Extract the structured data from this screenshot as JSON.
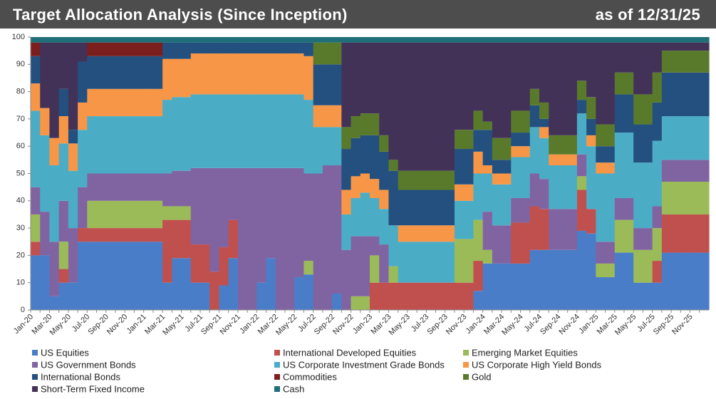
{
  "chart_data": {
    "type": "bar",
    "stacked": true,
    "title": "Target Allocation Analysis (Since Inception)",
    "subtitle": "as of 12/31/25",
    "categories": [
      "Jan-20",
      null,
      "Mar-20",
      null,
      "May-20",
      null,
      "Jul-20",
      null,
      "Sep-20",
      null,
      "Nov-20",
      null,
      "Jan-21",
      null,
      "Mar-21",
      null,
      "May-21",
      null,
      "Jul-21",
      null,
      "Sep-21",
      null,
      "Nov-21",
      null,
      "Jan-22",
      null,
      "Mar-22",
      null,
      "May-22",
      null,
      "Jul-22",
      null,
      "Sep-22",
      null,
      "Nov-22",
      null,
      "Jan-23",
      null,
      "Mar-23",
      null,
      "May-23",
      null,
      "Jul-23",
      null,
      "Sep-23",
      null,
      "Nov-23",
      null,
      "Jan-24",
      null,
      "Mar-24",
      null,
      "May-24",
      null,
      "Jul-24",
      null,
      "Sep-24",
      null,
      "Nov-24",
      null,
      "Jan-25",
      null,
      "Mar-25",
      null,
      "May-25",
      null,
      "Jul-25",
      null,
      "Sep-25",
      null,
      "Nov-25",
      null
    ],
    "ylim": [
      0,
      100
    ],
    "yticks": [
      0,
      10,
      20,
      30,
      40,
      50,
      60,
      70,
      80,
      90,
      100
    ],
    "grid": false,
    "legend": "bottom",
    "series": [
      {
        "name": "US Equities",
        "color": "#4a7dc8",
        "values": [
          20,
          20,
          5,
          10,
          10,
          25,
          25,
          25,
          25,
          25,
          25,
          25,
          25,
          25,
          10,
          19,
          19,
          10,
          10,
          0,
          9,
          19,
          0,
          0,
          10,
          19,
          0,
          0,
          12,
          13,
          0,
          0,
          6,
          0,
          0,
          0,
          0,
          0,
          0,
          0,
          0,
          0,
          0,
          0,
          0,
          0,
          0,
          7,
          17,
          17,
          17,
          17,
          17,
          22,
          22,
          22,
          22,
          22,
          29,
          28,
          12,
          12,
          21,
          21,
          10,
          10,
          10,
          21,
          21,
          21,
          21,
          21
        ]
      },
      {
        "name": "International Developed Equities",
        "color": "#c0504d",
        "values": [
          5,
          0,
          0,
          5,
          0,
          5,
          5,
          5,
          5,
          5,
          5,
          5,
          5,
          5,
          23,
          14,
          14,
          14,
          14,
          14,
          14,
          14,
          0,
          0,
          0,
          0,
          0,
          0,
          0,
          0,
          0,
          0,
          0,
          0,
          0,
          0,
          10,
          10,
          10,
          10,
          10,
          10,
          10,
          10,
          10,
          10,
          10,
          11,
          0,
          0,
          0,
          15,
          15,
          16,
          15,
          0,
          0,
          0,
          15,
          9,
          0,
          0,
          0,
          0,
          0,
          0,
          8,
          14,
          14,
          14,
          14,
          14
        ]
      },
      {
        "name": "Emerging Market Equities",
        "color": "#9bbb59",
        "values": [
          10,
          0,
          0,
          10,
          0,
          0,
          10,
          10,
          10,
          10,
          10,
          10,
          10,
          10,
          5,
          5,
          5,
          0,
          0,
          0,
          0,
          0,
          0,
          0,
          0,
          0,
          0,
          0,
          0,
          5,
          0,
          0,
          0,
          0,
          5,
          5,
          10,
          0,
          6,
          0,
          0,
          0,
          0,
          0,
          0,
          16,
          16,
          15,
          5,
          0,
          0,
          0,
          0,
          0,
          0,
          0,
          0,
          0,
          5,
          0,
          5,
          5,
          12,
          12,
          12,
          12,
          12,
          12,
          12,
          12,
          12,
          12
        ]
      },
      {
        "name": "US Government Bonds",
        "color": "#8064a2",
        "values": [
          10,
          16,
          20,
          15,
          20,
          15,
          10,
          10,
          10,
          10,
          10,
          10,
          10,
          10,
          12,
          13,
          13,
          28,
          28,
          38,
          29,
          19,
          52,
          52,
          42,
          33,
          52,
          52,
          40,
          32,
          50,
          53,
          47,
          22,
          22,
          22,
          7,
          14,
          0,
          0,
          0,
          0,
          0,
          0,
          0,
          0,
          0,
          0,
          14,
          14,
          14,
          9,
          9,
          12,
          11,
          15,
          15,
          15,
          8,
          0,
          8,
          8,
          8,
          8,
          8,
          8,
          8,
          8,
          8,
          8,
          8,
          8
        ]
      },
      {
        "name": "US Corporate Investment Grade Bonds",
        "color": "#4bacc6",
        "values": [
          28,
          28,
          28,
          21,
          21,
          21,
          21,
          21,
          21,
          21,
          21,
          21,
          21,
          21,
          27,
          27,
          27,
          27,
          27,
          27,
          27,
          27,
          27,
          27,
          27,
          27,
          27,
          27,
          27,
          27,
          17,
          14,
          14,
          13,
          14,
          16,
          14,
          13,
          15,
          15,
          15,
          15,
          15,
          15,
          15,
          14,
          14,
          17,
          14,
          15,
          15,
          15,
          15,
          17,
          15,
          16,
          16,
          16,
          15,
          23,
          25,
          25,
          24,
          24,
          24,
          24,
          24,
          16,
          16,
          16,
          16,
          16
        ]
      },
      {
        "name": "US Corporate High Yield Bonds",
        "color": "#f79646",
        "values": [
          10,
          10,
          10,
          10,
          10,
          10,
          10,
          10,
          10,
          10,
          10,
          10,
          10,
          10,
          15,
          14,
          14,
          15,
          15,
          15,
          15,
          15,
          15,
          15,
          15,
          15,
          15,
          15,
          15,
          16,
          8,
          8,
          8,
          9,
          8,
          7,
          7,
          7,
          0,
          6,
          6,
          6,
          6,
          6,
          6,
          6,
          6,
          8,
          3,
          4,
          4,
          4,
          4,
          0,
          4,
          4,
          4,
          4,
          0,
          4,
          4,
          4,
          0,
          0,
          0,
          0,
          0,
          0,
          0,
          0,
          0,
          0
        ]
      },
      {
        "name": "International Bonds",
        "color": "#24507f",
        "values": [
          10,
          0,
          0,
          10,
          5,
          15,
          12,
          12,
          12,
          12,
          12,
          12,
          12,
          12,
          6,
          6,
          6,
          4,
          4,
          4,
          4,
          4,
          4,
          4,
          4,
          4,
          4,
          4,
          4,
          5,
          15,
          15,
          15,
          15,
          14,
          14,
          16,
          14,
          20,
          13,
          13,
          13,
          13,
          13,
          13,
          13,
          13,
          8,
          13,
          5,
          5,
          5,
          5,
          8,
          3,
          0,
          0,
          0,
          5,
          6,
          6,
          6,
          14,
          14,
          14,
          14,
          14,
          16,
          16,
          16,
          16,
          16
        ]
      },
      {
        "name": "Commodities",
        "color": "#7a1e1e",
        "values": [
          5,
          0,
          0,
          0,
          0,
          0,
          5,
          5,
          5,
          5,
          5,
          5,
          5,
          5,
          0,
          0,
          0,
          0,
          0,
          0,
          0,
          0,
          0,
          0,
          0,
          0,
          0,
          0,
          0,
          0,
          0,
          0,
          0,
          0,
          0,
          0,
          0,
          0,
          0,
          0,
          0,
          0,
          0,
          0,
          0,
          0,
          0,
          0,
          0,
          0,
          0,
          0,
          0,
          0,
          0,
          0,
          0,
          0,
          0,
          0,
          0,
          0,
          0,
          0,
          0,
          0,
          0,
          0,
          0,
          0,
          0,
          0
        ]
      },
      {
        "name": "Gold",
        "color": "#5a7a2b",
        "values": [
          0,
          0,
          0,
          0,
          0,
          0,
          0,
          0,
          0,
          0,
          0,
          0,
          0,
          0,
          0,
          0,
          0,
          0,
          0,
          0,
          0,
          0,
          0,
          0,
          0,
          0,
          0,
          0,
          0,
          0,
          8,
          8,
          8,
          8,
          8,
          8,
          8,
          6,
          4,
          7,
          7,
          7,
          7,
          7,
          7,
          7,
          7,
          7,
          3,
          8,
          8,
          8,
          8,
          6,
          6,
          7,
          7,
          7,
          7,
          8,
          8,
          8,
          8,
          8,
          11,
          11,
          11,
          8,
          8,
          8,
          8,
          8
        ]
      },
      {
        "name": "Short-Term Fixed Income",
        "color": "#433258",
        "values": [
          0,
          24,
          35,
          17,
          32,
          7,
          0,
          0,
          0,
          0,
          0,
          0,
          0,
          0,
          0,
          0,
          0,
          0,
          0,
          0,
          0,
          0,
          0,
          0,
          0,
          0,
          0,
          0,
          0,
          0,
          0,
          0,
          0,
          31,
          27,
          26,
          26,
          34,
          43,
          47,
          47,
          47,
          47,
          47,
          47,
          32,
          32,
          25,
          29,
          35,
          35,
          25,
          25,
          17,
          22,
          34,
          34,
          34,
          14,
          20,
          30,
          30,
          11,
          11,
          19,
          19,
          11,
          3,
          3,
          3,
          3,
          3
        ]
      },
      {
        "name": "Cash",
        "color": "#1f6f78",
        "values": [
          2,
          2,
          2,
          2,
          2,
          2,
          2,
          2,
          2,
          2,
          2,
          2,
          2,
          2,
          2,
          2,
          2,
          2,
          2,
          2,
          2,
          2,
          2,
          2,
          2,
          2,
          2,
          2,
          2,
          2,
          2,
          2,
          2,
          2,
          2,
          2,
          2,
          2,
          2,
          2,
          2,
          2,
          2,
          2,
          2,
          2,
          2,
          2,
          2,
          2,
          2,
          2,
          2,
          2,
          2,
          2,
          2,
          2,
          2,
          2,
          2,
          2,
          2,
          2,
          2,
          2,
          2,
          2,
          2,
          2,
          2,
          2
        ]
      }
    ]
  }
}
